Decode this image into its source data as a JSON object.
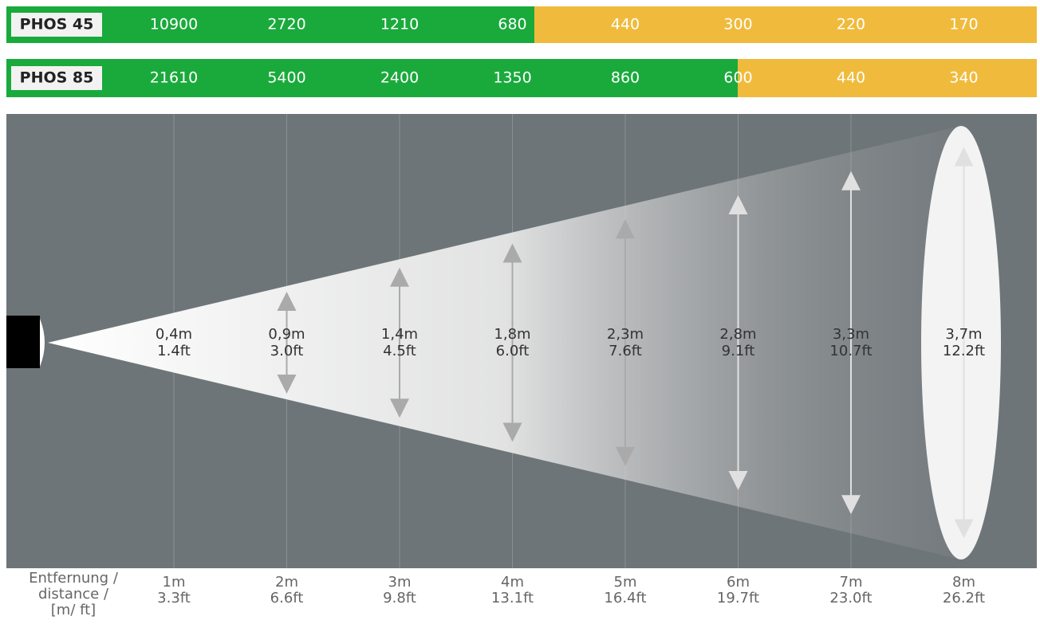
{
  "rows": [
    {
      "label": "PHOS 45",
      "values": [
        10900,
        2720,
        1210,
        680,
        440,
        300,
        220,
        170
      ]
    },
    {
      "label": "PHOS 85",
      "values": [
        21610,
        5400,
        2400,
        1350,
        860,
        600,
        440,
        340
      ]
    }
  ],
  "beam": [
    {
      "m": "0,4m",
      "ft": "1.4ft"
    },
    {
      "m": "0,9m",
      "ft": "3.0ft"
    },
    {
      "m": "1,4m",
      "ft": "4.5ft"
    },
    {
      "m": "1,8m",
      "ft": "6.0ft"
    },
    {
      "m": "2,3m",
      "ft": "7.6ft"
    },
    {
      "m": "2,8m",
      "ft": "9.1ft"
    },
    {
      "m": "3,3m",
      "ft": "10.7ft"
    },
    {
      "m": "3,7m",
      "ft": "12.2ft"
    }
  ],
  "axis_label": [
    "Entfernung /",
    "distance /",
    "[m/ ft]"
  ],
  "distances": [
    {
      "m": "1m",
      "ft": "3.3ft"
    },
    {
      "m": "2m",
      "ft": "6.6ft"
    },
    {
      "m": "3m",
      "ft": "9.8ft"
    },
    {
      "m": "4m",
      "ft": "13.1ft"
    },
    {
      "m": "5m",
      "ft": "16.4ft"
    },
    {
      "m": "6m",
      "ft": "19.7ft"
    },
    {
      "m": "7m",
      "ft": "23.0ft"
    },
    {
      "m": "8m",
      "ft": "26.2ft"
    }
  ]
}
